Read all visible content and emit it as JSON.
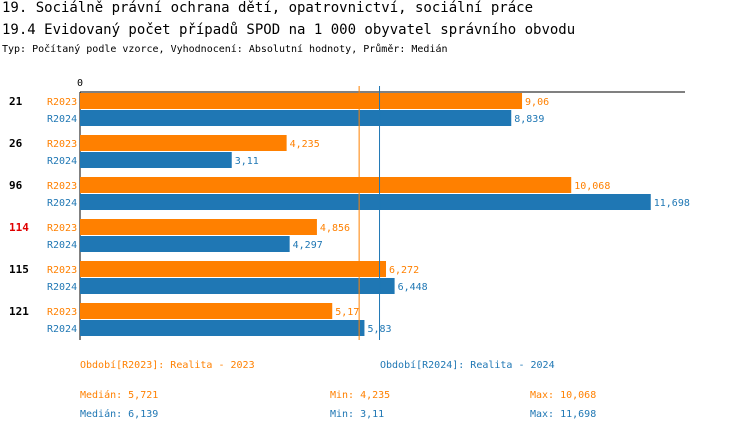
{
  "title_line1": "19. Sociálně právní ochrana dětí, opatrovnictví, sociální práce",
  "title_line2": "19.4 Evidovaný počet případů SPOD na 1 000 obyvatel správního obvodu",
  "subtitle": "Typ: Počítaný podle vzorce, Vyhodnocení: Absolutní hodnoty, Průměr: Medián",
  "colors": {
    "R2023": "#ff8000",
    "R2024": "#1f77b4",
    "highlight": "#e00000"
  },
  "chart_data": {
    "type": "bar",
    "orientation": "horizontal",
    "axis_zero_label": "0",
    "xlim": [
      0,
      12.4
    ],
    "categories": [
      "21",
      "26",
      "96",
      "114",
      "115",
      "121"
    ],
    "highlighted_category": "114",
    "series": [
      {
        "name": "R2023",
        "labels": [
          "9,06",
          "4,235",
          "10,068",
          "4,856",
          "6,272",
          "5,17"
        ],
        "values": [
          9.06,
          4.235,
          10.068,
          4.856,
          6.272,
          5.17
        ]
      },
      {
        "name": "R2024",
        "labels": [
          "8,839",
          "3,11",
          "11,698",
          "4,297",
          "6,448",
          "5,83"
        ],
        "values": [
          8.839,
          3.11,
          11.698,
          4.297,
          6.448,
          5.83
        ]
      }
    ],
    "median_lines": {
      "R2023": 5.721,
      "R2024": 6.139
    }
  },
  "legend": {
    "r2023": "Období[R2023]: Realita - 2023",
    "r2024": "Období[R2024]: Realita - 2024"
  },
  "stats": {
    "r2023": {
      "median": "Medián: 5,721",
      "min": "Min: 4,235",
      "max": "Max: 10,068"
    },
    "r2024": {
      "median": "Medián: 6,139",
      "min": "Min: 3,11",
      "max": "Max: 11,698"
    }
  }
}
